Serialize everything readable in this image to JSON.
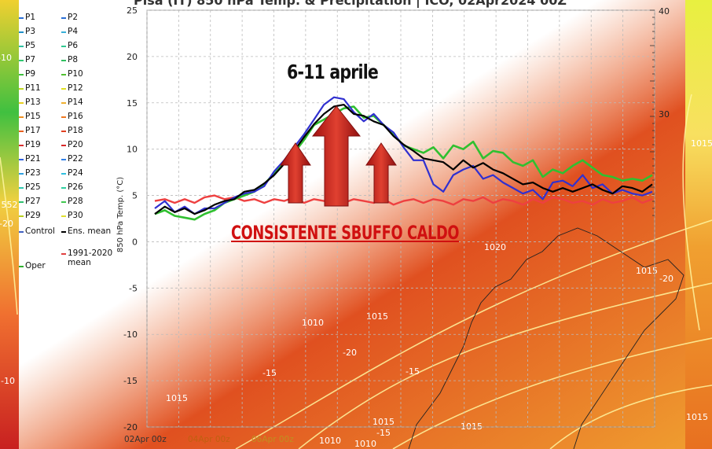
{
  "header": {
    "title_fragment": "Pisa (IT) 850 hPa Temp. & Precipitation | ICO, 02Apr2024 00Z"
  },
  "annotations": {
    "period": "6-11 aprile",
    "message": "CONSISTENTE SBUFFO CALDO"
  },
  "map_labels": [
    "1020",
    "1010",
    "1015",
    "1015",
    "1015",
    "1015",
    "1015",
    "1015",
    "1015",
    "1010",
    "1010",
    "-20",
    "-20",
    "-15",
    "-15",
    "-15",
    "-10",
    "-10",
    "552",
    "-20"
  ],
  "legend": {
    "items": [
      {
        "label": "P1",
        "color": "#2a6fd6"
      },
      {
        "label": "P2",
        "color": "#2a6fd6"
      },
      {
        "label": "P3",
        "color": "#1f8fc8"
      },
      {
        "label": "P4",
        "color": "#38b0d8"
      },
      {
        "label": "P5",
        "color": "#2fc0a0"
      },
      {
        "label": "P6",
        "color": "#30c890"
      },
      {
        "label": "P7",
        "color": "#30c870"
      },
      {
        "label": "P8",
        "color": "#30c060"
      },
      {
        "label": "P9",
        "color": "#40c040"
      },
      {
        "label": "P10",
        "color": "#50c030"
      },
      {
        "label": "P11",
        "color": "#c0d820"
      },
      {
        "label": "P12",
        "color": "#e0e020"
      },
      {
        "label": "P13",
        "color": "#e8d020"
      },
      {
        "label": "P14",
        "color": "#f0b030"
      },
      {
        "label": "P15",
        "color": "#f09020"
      },
      {
        "label": "P16",
        "color": "#f07820"
      },
      {
        "label": "P17",
        "color": "#e86020"
      },
      {
        "label": "P18",
        "color": "#e04020"
      },
      {
        "label": "P19",
        "color": "#d83030"
      },
      {
        "label": "P20",
        "color": "#d82828"
      },
      {
        "label": "P21",
        "color": "#3060e0"
      },
      {
        "label": "P22",
        "color": "#3080e8"
      },
      {
        "label": "P23",
        "color": "#30a0e0"
      },
      {
        "label": "P24",
        "color": "#30c0e0"
      },
      {
        "label": "P25",
        "color": "#30c8b0"
      },
      {
        "label": "P26",
        "color": "#30d0a0"
      },
      {
        "label": "P27",
        "color": "#30c070"
      },
      {
        "label": "P28",
        "color": "#40c850"
      },
      {
        "label": "P29",
        "color": "#b8d020"
      },
      {
        "label": "P30",
        "color": "#e0e030"
      },
      {
        "label": "Control",
        "color": "#4060c0"
      },
      {
        "label": "Ens. mean",
        "color": "#000000"
      },
      {
        "label": "Oper",
        "color": "#30b030"
      },
      {
        "label": "1991-2020 mean",
        "color": "#e04040"
      }
    ]
  },
  "chart_data": {
    "type": "line",
    "ylabel": "850 hPa Temp. (°C)",
    "ylim": [
      -20,
      25
    ],
    "yticks": [
      -20,
      -15,
      -10,
      -5,
      0,
      5,
      10,
      15,
      20,
      25
    ],
    "y2ticks": [
      "40",
      "30"
    ],
    "x_start": "02Apr 00z",
    "xticks": [
      "02Apr 00z",
      "04Apr 00z",
      "06Apr 00z"
    ],
    "grid": true,
    "series": [
      {
        "name": "Ens. mean",
        "color": "#000000",
        "width": 2.2,
        "values": [
          3.0,
          3.8,
          3.2,
          3.6,
          3.0,
          3.4,
          4.0,
          4.4,
          4.6,
          5.4,
          5.6,
          6.3,
          7.2,
          8.4,
          9.8,
          11.3,
          12.7,
          13.8,
          14.6,
          14.8,
          13.8,
          13.6,
          13.0,
          12.6,
          11.4,
          10.5,
          9.8,
          9.0,
          8.8,
          8.6,
          7.8,
          8.8,
          8.0,
          8.5,
          7.8,
          7.4,
          6.8,
          6.2,
          6.4,
          5.8,
          5.4,
          5.8,
          5.4,
          5.8,
          6.2,
          5.6,
          5.2,
          6.0,
          5.8,
          5.4,
          6.2
        ]
      },
      {
        "name": "Control",
        "color": "#3030d0",
        "width": 2.2,
        "values": [
          3.6,
          4.4,
          3.2,
          3.8,
          3.0,
          3.6,
          3.6,
          4.2,
          4.8,
          5.2,
          5.4,
          6.0,
          7.6,
          8.8,
          10.2,
          11.6,
          13.2,
          14.8,
          15.6,
          15.4,
          14.0,
          13.0,
          13.8,
          12.6,
          11.8,
          10.2,
          8.8,
          8.8,
          6.2,
          5.4,
          7.2,
          7.8,
          8.2,
          6.8,
          7.2,
          6.4,
          5.8,
          5.2,
          5.6,
          4.6,
          6.4,
          6.6,
          6.0,
          7.2,
          5.8,
          6.2,
          5.2,
          5.6,
          5.2,
          5.0,
          5.4
        ]
      },
      {
        "name": "Oper",
        "color": "#30c030",
        "width": 2.6,
        "values": [
          3.0,
          3.4,
          2.8,
          2.6,
          2.4,
          3.0,
          3.4,
          4.2,
          4.6,
          5.0,
          5.4,
          6.2,
          7.4,
          8.6,
          9.6,
          11.0,
          12.6,
          13.2,
          13.8,
          14.4,
          14.6,
          13.4,
          13.6,
          12.6,
          11.6,
          10.4,
          10.0,
          9.6,
          10.2,
          9.0,
          10.4,
          10.0,
          10.8,
          9.0,
          9.8,
          9.6,
          8.6,
          8.2,
          8.8,
          7.0,
          7.8,
          7.4,
          8.2,
          8.8,
          8.0,
          7.2,
          7.0,
          6.6,
          6.8,
          6.6,
          7.2
        ]
      },
      {
        "name": "1991-2020 mean",
        "color": "#ee4040",
        "width": 2.4,
        "values": [
          4.4,
          4.6,
          4.2,
          4.6,
          4.2,
          4.8,
          5.0,
          4.6,
          4.8,
          4.4,
          4.6,
          4.2,
          4.6,
          4.4,
          4.8,
          4.2,
          4.6,
          4.4,
          4.8,
          4.2,
          4.6,
          4.4,
          4.2,
          4.6,
          4.0,
          4.4,
          4.6,
          4.2,
          4.6,
          4.4,
          4.0,
          4.6,
          4.4,
          4.8,
          4.2,
          4.6,
          4.4,
          4.0,
          4.6,
          4.2,
          4.8,
          4.6,
          4.2,
          4.4,
          4.0,
          4.6,
          4.2,
          4.4,
          4.8,
          4.2,
          4.6
        ]
      }
    ]
  }
}
